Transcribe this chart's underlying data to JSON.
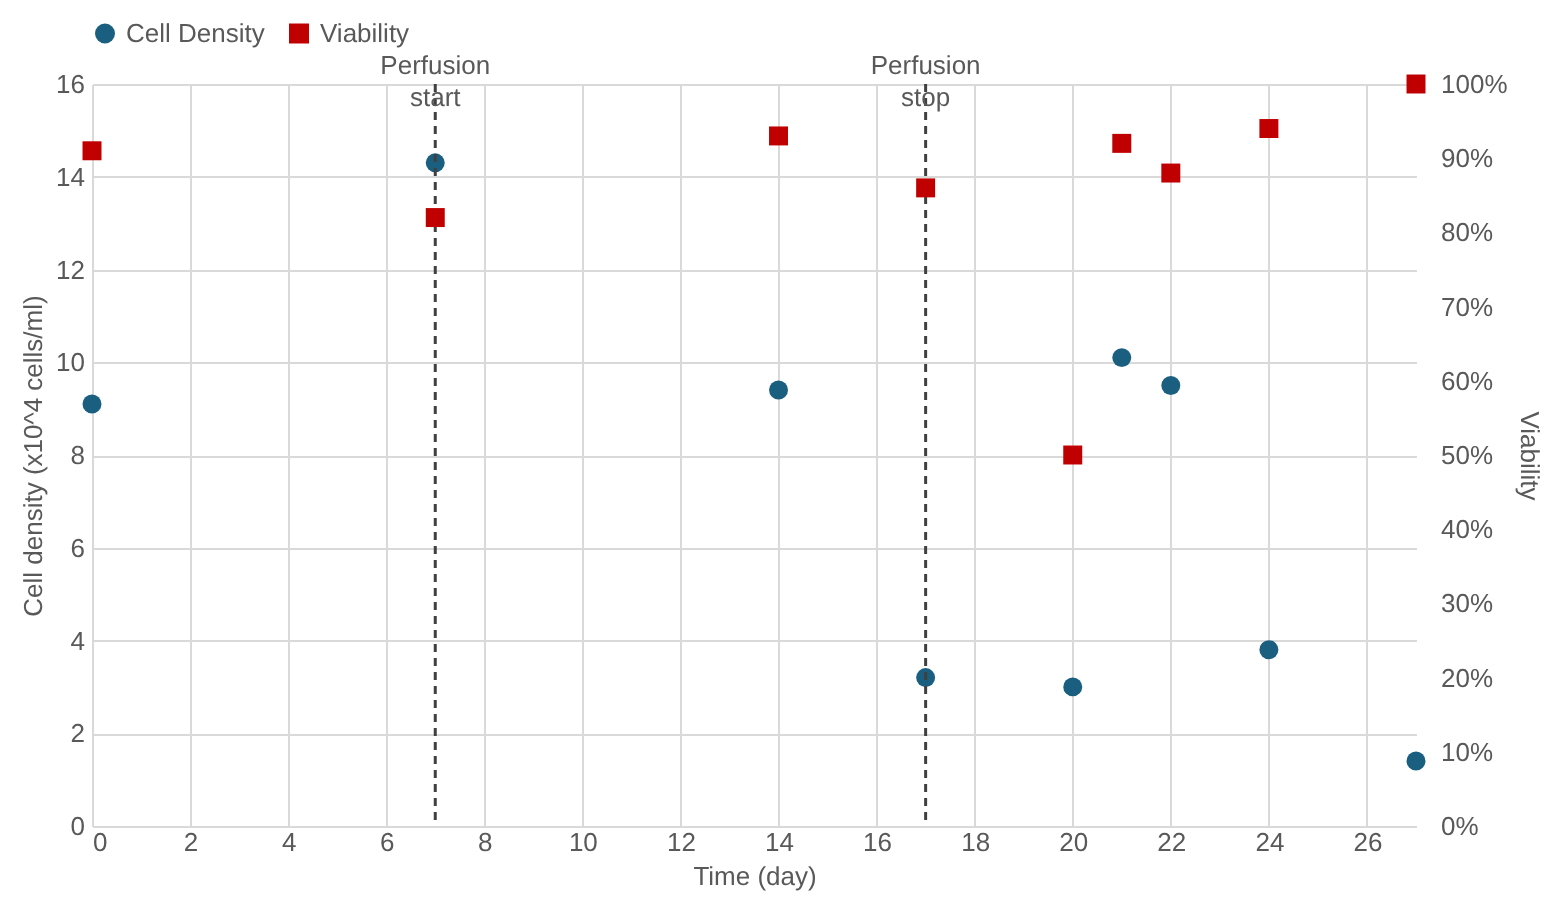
{
  "chart_data": {
    "type": "scatter",
    "xlabel": "Time (day)",
    "ylabel": "Cell density (x10^4 cells/ml)",
    "y2label": "Viability",
    "x": [
      0,
      7,
      14,
      17,
      20,
      21,
      22,
      24,
      27
    ],
    "series": [
      {
        "name": "Cell Density",
        "color": "#1a5e80",
        "marker": "circle",
        "values": [
          9.1,
          14.3,
          9.4,
          3.2,
          3.0,
          10.1,
          9.5,
          3.8,
          1.4
        ]
      },
      {
        "name": "Viability",
        "color": "#c00000",
        "marker": "square",
        "axis": "y2",
        "values": [
          91,
          82,
          93,
          86,
          50,
          92,
          88,
          94,
          100
        ]
      }
    ],
    "xlim": [
      0,
      27
    ],
    "xticks": [
      0,
      2,
      4,
      6,
      8,
      10,
      12,
      14,
      16,
      18,
      20,
      22,
      24,
      26
    ],
    "ylim": [
      0,
      16
    ],
    "yticks": [
      0,
      2,
      4,
      6,
      8,
      10,
      12,
      14,
      16
    ],
    "y2lim": [
      0,
      100
    ],
    "y2ticks": [
      {
        "value": 0,
        "label": "0%"
      },
      {
        "value": 10,
        "label": "10%"
      },
      {
        "value": 20,
        "label": "20%"
      },
      {
        "value": 30,
        "label": "30%"
      },
      {
        "value": 40,
        "label": "40%"
      },
      {
        "value": 50,
        "label": "50%"
      },
      {
        "value": 60,
        "label": "60%"
      },
      {
        "value": 70,
        "label": "70%"
      },
      {
        "value": 80,
        "label": "80%"
      },
      {
        "value": 90,
        "label": "90%"
      },
      {
        "value": 100,
        "label": "100%"
      }
    ],
    "ref_lines": [
      {
        "axis": "x",
        "value": 7,
        "label": "Perfusion start",
        "color": "#404040",
        "line_style": "dashed"
      },
      {
        "axis": "x",
        "value": 17,
        "label": "Perfusion stop",
        "color": "#404040",
        "line_style": "dashed"
      }
    ],
    "grid": true,
    "legend": "top"
  }
}
